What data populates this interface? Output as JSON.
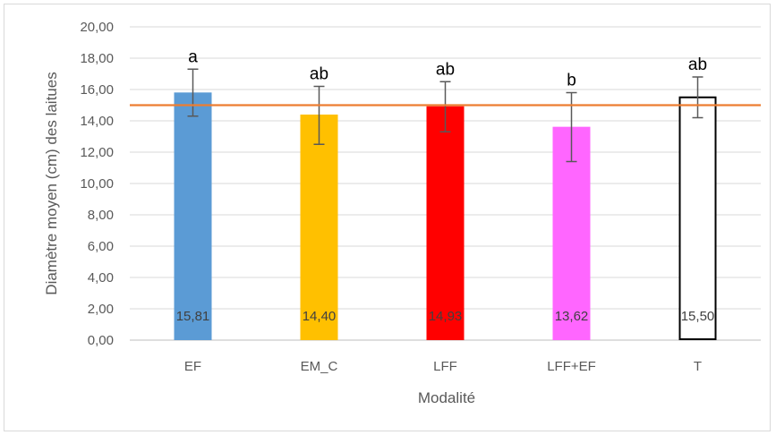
{
  "chart_data": {
    "type": "bar",
    "xlabel": "Modalité",
    "ylabel": "Diamètre moyen (cm) des laitues",
    "ylim": [
      0,
      20
    ],
    "ytick_step": 2,
    "ytick_labels": [
      "0,00",
      "2,00",
      "4,00",
      "6,00",
      "8,00",
      "10,00",
      "12,00",
      "14,00",
      "16,00",
      "18,00",
      "20,00"
    ],
    "grid": true,
    "categories": [
      "EF",
      "EM_C",
      "LFF",
      "LFF+EF",
      "T"
    ],
    "values": [
      15.81,
      14.4,
      14.93,
      13.62,
      15.5
    ],
    "value_labels": [
      "15,81",
      "14,40",
      "14,93",
      "13,62",
      "15,50"
    ],
    "error_low": [
      14.3,
      12.5,
      13.3,
      11.4,
      14.2
    ],
    "error_high": [
      17.3,
      16.2,
      16.5,
      15.8,
      16.8
    ],
    "significance_letters": [
      "a",
      "ab",
      "ab",
      "b",
      "ab"
    ],
    "bar_colors": [
      "#5b9bd5",
      "#ffc000",
      "#ff0000",
      "#ff66ff",
      "#ffffff"
    ],
    "bar_edge_colors": [
      "#5b9bd5",
      "#ffc000",
      "#ff0000",
      "#ff66ff",
      "#000000"
    ],
    "reference_line": {
      "value": 15.0,
      "color": "#ed7d31"
    }
  }
}
